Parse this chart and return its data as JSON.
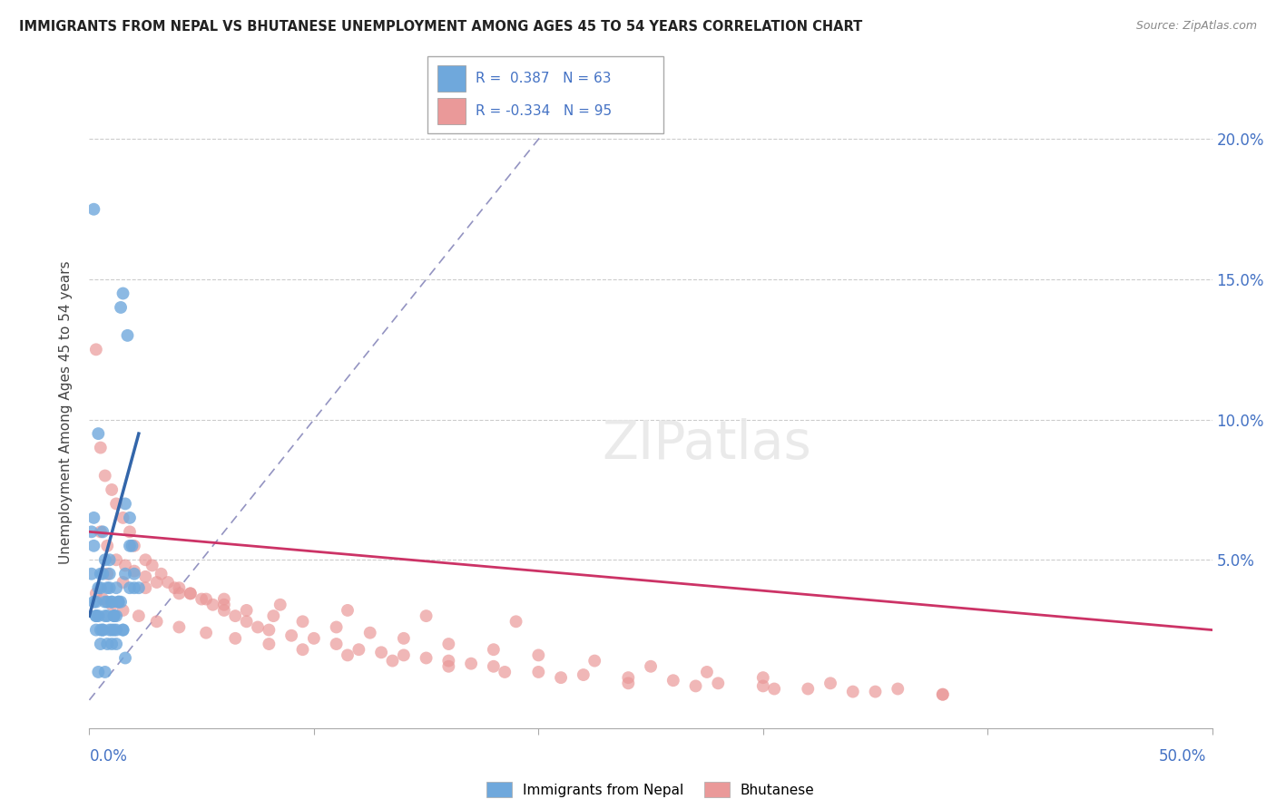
{
  "title": "IMMIGRANTS FROM NEPAL VS BHUTANESE UNEMPLOYMENT AMONG AGES 45 TO 54 YEARS CORRELATION CHART",
  "source": "Source: ZipAtlas.com",
  "ylabel": "Unemployment Among Ages 45 to 54 years",
  "ylabel_right_ticks": [
    "20.0%",
    "15.0%",
    "10.0%",
    "5.0%"
  ],
  "ylabel_right_values": [
    0.2,
    0.15,
    0.1,
    0.05
  ],
  "xlim": [
    0.0,
    0.5
  ],
  "ylim": [
    -0.01,
    0.215
  ],
  "nepal_R": 0.387,
  "nepal_N": 63,
  "bhutan_R": -0.334,
  "bhutan_N": 95,
  "nepal_color": "#6fa8dc",
  "bhutan_color": "#ea9999",
  "nepal_trend_color": "#3366aa",
  "bhutan_trend_color": "#cc3366",
  "diagonal_color": "#8888bb",
  "background_color": "#ffffff",
  "nepal_scatter_x": [
    0.002,
    0.003,
    0.004,
    0.005,
    0.006,
    0.007,
    0.008,
    0.009,
    0.01,
    0.011,
    0.012,
    0.013,
    0.014,
    0.015,
    0.016,
    0.017,
    0.018,
    0.019,
    0.02,
    0.022,
    0.001,
    0.002,
    0.003,
    0.004,
    0.005,
    0.006,
    0.007,
    0.008,
    0.009,
    0.01,
    0.011,
    0.012,
    0.013,
    0.015,
    0.003,
    0.005,
    0.006,
    0.007,
    0.008,
    0.009,
    0.01,
    0.011,
    0.012,
    0.015,
    0.018,
    0.001,
    0.002,
    0.003,
    0.004,
    0.005,
    0.007,
    0.009,
    0.01,
    0.012,
    0.014,
    0.016,
    0.018,
    0.02,
    0.002,
    0.004,
    0.006,
    0.008,
    0.016
  ],
  "nepal_scatter_y": [
    0.175,
    0.03,
    0.04,
    0.045,
    0.06,
    0.035,
    0.04,
    0.05,
    0.035,
    0.03,
    0.025,
    0.035,
    0.14,
    0.145,
    0.07,
    0.13,
    0.065,
    0.055,
    0.045,
    0.04,
    0.06,
    0.055,
    0.035,
    0.095,
    0.04,
    0.045,
    0.05,
    0.03,
    0.04,
    0.035,
    0.025,
    0.04,
    0.035,
    0.025,
    0.03,
    0.025,
    0.025,
    0.03,
    0.035,
    0.045,
    0.025,
    0.03,
    0.02,
    0.025,
    0.04,
    0.045,
    0.035,
    0.025,
    0.03,
    0.02,
    0.01,
    0.025,
    0.02,
    0.03,
    0.035,
    0.045,
    0.055,
    0.04,
    0.065,
    0.01,
    0.025,
    0.02,
    0.015
  ],
  "bhutan_scatter_x": [
    0.003,
    0.005,
    0.007,
    0.01,
    0.012,
    0.015,
    0.018,
    0.02,
    0.025,
    0.028,
    0.032,
    0.035,
    0.04,
    0.045,
    0.05,
    0.055,
    0.06,
    0.065,
    0.07,
    0.075,
    0.08,
    0.09,
    0.1,
    0.11,
    0.12,
    0.13,
    0.14,
    0.15,
    0.16,
    0.17,
    0.18,
    0.2,
    0.22,
    0.24,
    0.26,
    0.28,
    0.3,
    0.32,
    0.35,
    0.38,
    0.005,
    0.008,
    0.012,
    0.016,
    0.02,
    0.025,
    0.03,
    0.038,
    0.045,
    0.052,
    0.06,
    0.07,
    0.082,
    0.095,
    0.11,
    0.125,
    0.14,
    0.16,
    0.18,
    0.2,
    0.225,
    0.25,
    0.275,
    0.3,
    0.33,
    0.36,
    0.003,
    0.006,
    0.01,
    0.015,
    0.022,
    0.03,
    0.04,
    0.052,
    0.065,
    0.08,
    0.095,
    0.115,
    0.135,
    0.16,
    0.185,
    0.21,
    0.24,
    0.27,
    0.305,
    0.34,
    0.38,
    0.008,
    0.015,
    0.025,
    0.04,
    0.06,
    0.085,
    0.115,
    0.15,
    0.19
  ],
  "bhutan_scatter_y": [
    0.125,
    0.09,
    0.08,
    0.075,
    0.07,
    0.065,
    0.06,
    0.055,
    0.05,
    0.048,
    0.045,
    0.042,
    0.04,
    0.038,
    0.036,
    0.034,
    0.032,
    0.03,
    0.028,
    0.026,
    0.025,
    0.023,
    0.022,
    0.02,
    0.018,
    0.017,
    0.016,
    0.015,
    0.014,
    0.013,
    0.012,
    0.01,
    0.009,
    0.008,
    0.007,
    0.006,
    0.005,
    0.004,
    0.003,
    0.002,
    0.06,
    0.055,
    0.05,
    0.048,
    0.046,
    0.044,
    0.042,
    0.04,
    0.038,
    0.036,
    0.034,
    0.032,
    0.03,
    0.028,
    0.026,
    0.024,
    0.022,
    0.02,
    0.018,
    0.016,
    0.014,
    0.012,
    0.01,
    0.008,
    0.006,
    0.004,
    0.038,
    0.036,
    0.034,
    0.032,
    0.03,
    0.028,
    0.026,
    0.024,
    0.022,
    0.02,
    0.018,
    0.016,
    0.014,
    0.012,
    0.01,
    0.008,
    0.006,
    0.005,
    0.004,
    0.003,
    0.002,
    0.045,
    0.042,
    0.04,
    0.038,
    0.036,
    0.034,
    0.032,
    0.03,
    0.028
  ]
}
